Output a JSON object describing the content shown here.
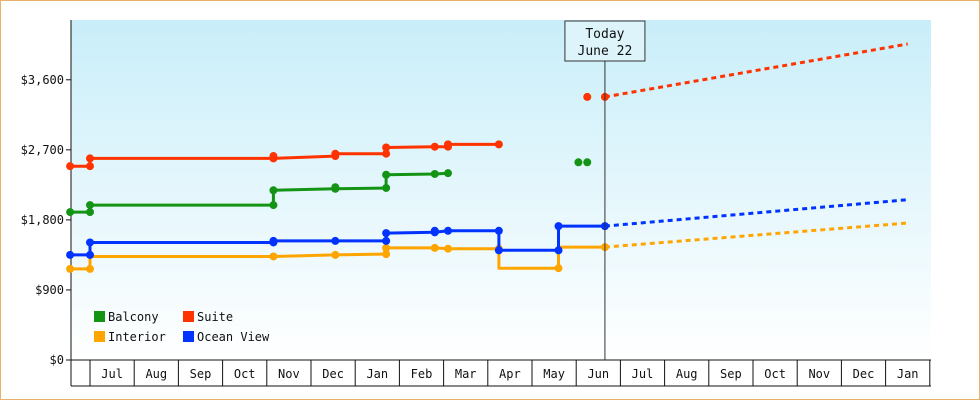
{
  "chart_data": {
    "type": "line",
    "y_axis": {
      "min": 0,
      "max": 4368,
      "ticks": [
        {
          "value": 0,
          "label": "$0"
        },
        {
          "value": 900,
          "label": "$900"
        },
        {
          "value": 1800,
          "label": "$1,800"
        },
        {
          "value": 2700,
          "label": "$2,700"
        },
        {
          "value": 3600,
          "label": "$3,600"
        }
      ]
    },
    "x_axis": {
      "months": [
        "Jul",
        "Aug",
        "Sep",
        "Oct",
        "Nov",
        "Dec",
        "Jan",
        "Feb",
        "Mar",
        "Apr",
        "May",
        "Jun",
        "Jul",
        "Aug",
        "Sep",
        "Oct",
        "Nov",
        "Dec",
        "Jan"
      ]
    },
    "today": {
      "line1": "Today",
      "line2": "June 22",
      "month_pos": 11.65
    },
    "legend": [
      {
        "name": "Balcony",
        "color": "#149414"
      },
      {
        "name": "Suite",
        "color": "#ff3300"
      },
      {
        "name": "Interior",
        "color": "#ffa500"
      },
      {
        "name": "Ocean View",
        "color": "#0033ff"
      }
    ],
    "series": [
      {
        "name": "Balcony",
        "color": "#149414",
        "segments": [
          [
            [
              -0.45,
              1900
            ],
            [
              0,
              1900
            ],
            [
              0,
              1990
            ],
            [
              4.15,
              1990
            ],
            [
              4.15,
              2180
            ],
            [
              5.55,
              2200
            ],
            [
              6.7,
              2210
            ],
            [
              6.7,
              2380
            ],
            [
              7.8,
              2390
            ],
            [
              8.1,
              2400
            ]
          ]
        ],
        "points": [
          [
            -0.45,
            1900
          ],
          [
            0,
            1900
          ],
          [
            0,
            1990
          ],
          [
            4.15,
            1990
          ],
          [
            4.15,
            2180
          ],
          [
            5.55,
            2200
          ],
          [
            5.55,
            2220
          ],
          [
            6.7,
            2210
          ],
          [
            6.7,
            2380
          ],
          [
            7.8,
            2390
          ],
          [
            8.1,
            2400
          ]
        ],
        "extra_points": [
          [
            11.05,
            2540
          ],
          [
            11.25,
            2540
          ]
        ]
      },
      {
        "name": "Suite",
        "color": "#ff3300",
        "segments": [
          [
            [
              -0.45,
              2490
            ],
            [
              0,
              2490
            ],
            [
              0,
              2590
            ],
            [
              4.15,
              2590
            ],
            [
              5.55,
              2620
            ],
            [
              5.55,
              2650
            ],
            [
              6.7,
              2650
            ],
            [
              6.7,
              2730
            ],
            [
              7.8,
              2740
            ],
            [
              8.1,
              2740
            ],
            [
              8.1,
              2770
            ],
            [
              9.25,
              2770
            ]
          ]
        ],
        "points": [
          [
            -0.45,
            2490
          ],
          [
            0,
            2490
          ],
          [
            0,
            2590
          ],
          [
            4.15,
            2590
          ],
          [
            4.15,
            2620
          ],
          [
            5.55,
            2620
          ],
          [
            5.55,
            2650
          ],
          [
            6.7,
            2650
          ],
          [
            6.7,
            2730
          ],
          [
            7.8,
            2740
          ],
          [
            8.1,
            2740
          ],
          [
            8.1,
            2770
          ],
          [
            9.25,
            2770
          ]
        ],
        "extra_points": [
          [
            11.25,
            3380
          ],
          [
            11.65,
            3380
          ]
        ],
        "projection": [
          [
            11.65,
            3380
          ],
          [
            18.5,
            4060
          ]
        ]
      },
      {
        "name": "Interior",
        "color": "#ffa500",
        "segments": [
          [
            [
              -0.45,
              1170
            ],
            [
              0,
              1170
            ],
            [
              0,
              1330
            ],
            [
              4.15,
              1330
            ],
            [
              5.55,
              1350
            ],
            [
              6.7,
              1360
            ],
            [
              6.7,
              1440
            ],
            [
              7.8,
              1440
            ],
            [
              8.1,
              1430
            ],
            [
              9.25,
              1430
            ],
            [
              9.25,
              1180
            ],
            [
              10.6,
              1180
            ],
            [
              10.6,
              1450
            ],
            [
              11.65,
              1450
            ]
          ]
        ],
        "points": [
          [
            -0.45,
            1170
          ],
          [
            0,
            1170
          ],
          [
            4.15,
            1330
          ],
          [
            5.55,
            1350
          ],
          [
            6.7,
            1360
          ],
          [
            6.7,
            1440
          ],
          [
            7.8,
            1440
          ],
          [
            8.1,
            1430
          ],
          [
            9.25,
            1430
          ],
          [
            10.6,
            1180
          ],
          [
            11.65,
            1450
          ]
        ],
        "projection": [
          [
            11.65,
            1450
          ],
          [
            18.5,
            1760
          ]
        ]
      },
      {
        "name": "Ocean View",
        "color": "#0033ff",
        "segments": [
          [
            [
              -0.45,
              1350
            ],
            [
              0,
              1350
            ],
            [
              0,
              1510
            ],
            [
              4.15,
              1510
            ],
            [
              4.15,
              1530
            ],
            [
              5.55,
              1530
            ],
            [
              6.7,
              1530
            ],
            [
              6.7,
              1630
            ],
            [
              7.8,
              1640
            ],
            [
              8.1,
              1660
            ],
            [
              9.25,
              1660
            ],
            [
              9.25,
              1410
            ],
            [
              10.6,
              1410
            ],
            [
              10.6,
              1720
            ],
            [
              11.65,
              1720
            ]
          ]
        ],
        "points": [
          [
            -0.45,
            1350
          ],
          [
            0,
            1350
          ],
          [
            0,
            1510
          ],
          [
            4.15,
            1510
          ],
          [
            4.15,
            1530
          ],
          [
            5.55,
            1530
          ],
          [
            6.7,
            1530
          ],
          [
            6.7,
            1630
          ],
          [
            7.8,
            1640
          ],
          [
            7.8,
            1660
          ],
          [
            8.1,
            1660
          ],
          [
            9.25,
            1660
          ],
          [
            9.25,
            1410
          ],
          [
            10.6,
            1410
          ],
          [
            10.6,
            1720
          ],
          [
            11.65,
            1720
          ]
        ],
        "projection": [
          [
            11.65,
            1720
          ],
          [
            18.5,
            2060
          ]
        ]
      }
    ]
  }
}
